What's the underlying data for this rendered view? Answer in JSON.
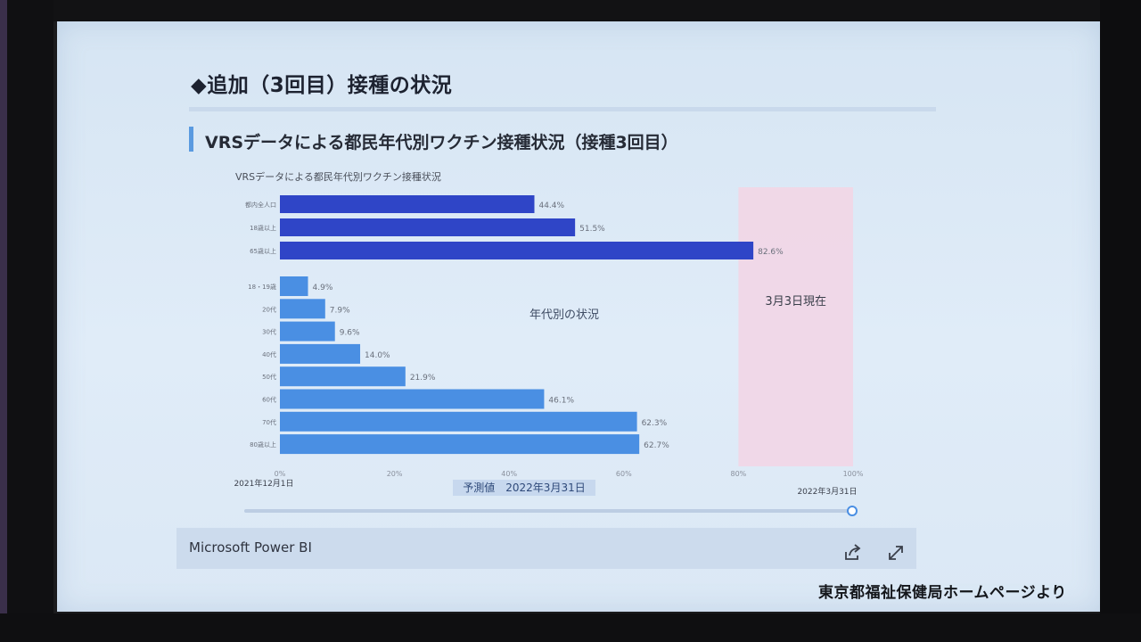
{
  "slide": {
    "title": "◆追加（3回目）接種の状況",
    "subtitle": "VRSデータによる都民年代別ワクチン接種状況（接種3回目）"
  },
  "chart_data": {
    "type": "bar",
    "orientation": "horizontal",
    "title": "VRSデータによる都民年代別ワクチン接種状況",
    "group_label": "年代別の状況",
    "highlight_label": "3月3日現在",
    "xlim": [
      0,
      100
    ],
    "x_ticks": [
      "0%",
      "20%",
      "40%",
      "60%",
      "80%",
      "100%"
    ],
    "highlight_range": [
      80,
      100
    ],
    "colors": {
      "total": "#2f45c7",
      "age": "#4a8fe3",
      "highlight": "#f2d6e6"
    },
    "totals": [
      {
        "label": "都内全人口",
        "value": 44.4,
        "value_label": "44.4%"
      },
      {
        "label": "18歳以上",
        "value": 51.5,
        "value_label": "51.5%"
      },
      {
        "label": "65歳以上",
        "value": 82.6,
        "value_label": "82.6%"
      }
    ],
    "age_groups": [
      {
        "label": "18・19歳",
        "value": 4.9,
        "value_label": "4.9%"
      },
      {
        "label": "20代",
        "value": 7.9,
        "value_label": "7.9%"
      },
      {
        "label": "30代",
        "value": 9.6,
        "value_label": "9.6%"
      },
      {
        "label": "40代",
        "value": 14.0,
        "value_label": "14.0%"
      },
      {
        "label": "50代",
        "value": 21.9,
        "value_label": "21.9%"
      },
      {
        "label": "60代",
        "value": 46.1,
        "value_label": "46.1%"
      },
      {
        "label": "70代",
        "value": 62.3,
        "value_label": "62.3%"
      },
      {
        "label": "80歳以上",
        "value": 62.7,
        "value_label": "62.7%"
      }
    ],
    "timeline": {
      "start_label": "2021年12月1日",
      "projection_label": "予測値　2022年3月31日",
      "end_label": "2022年3月31日",
      "slider_position": 1.0
    }
  },
  "footer": {
    "brand_label": "Microsoft Power BI",
    "share_icon": "share-icon",
    "expand_icon": "expand-icon"
  },
  "source_caption": "東京都福祉保健局ホームページより"
}
